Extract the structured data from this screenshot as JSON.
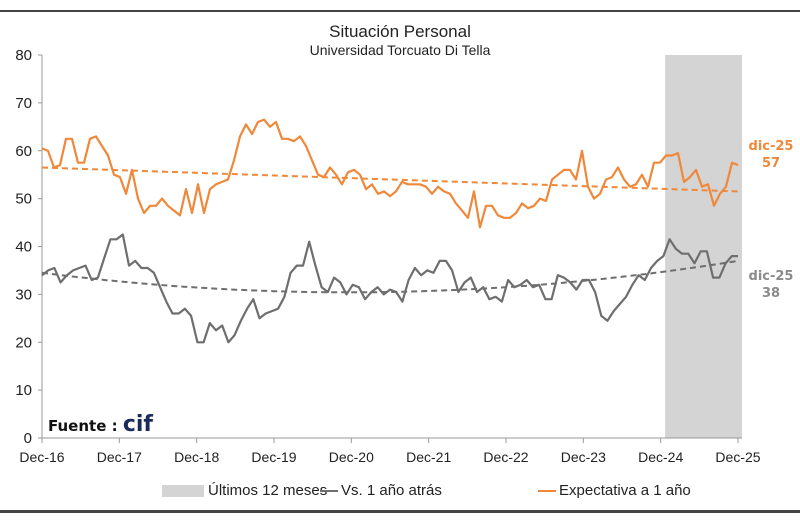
{
  "chart_data": {
    "type": "line",
    "title": "Situación Personal",
    "subtitle": "Universidad Torcuato Di Tella",
    "xlabel": "",
    "ylabel": "",
    "ylim": [
      0,
      80
    ],
    "yticks": [
      "0",
      "10",
      "20",
      "30",
      "40",
      "50",
      "60",
      "70",
      "80"
    ],
    "xticks": [
      "Dec-16",
      "Dec-17",
      "Dec-18",
      "Dec-19",
      "Dec-20",
      "Dec-21",
      "Dec-22",
      "Dec-23",
      "Dec-24",
      "Dec-25"
    ],
    "x_start": "Dec-16",
    "x_end": "Dec-25",
    "frequency": "monthly",
    "shaded_region": {
      "label": "Últimos 12 meses",
      "from_month_index": 97,
      "to_month_index": 108,
      "color": "#d4d4d4"
    },
    "series": [
      {
        "name": "Expectativa a 1 año",
        "color": "#f0883a",
        "end_label": "dic-25",
        "end_value": "57",
        "values": [
          60.5,
          60,
          56.5,
          57,
          62.5,
          62.5,
          57.5,
          57.5,
          62.5,
          63,
          61,
          59,
          55,
          54.5,
          51,
          56,
          50,
          47,
          48.5,
          48.5,
          50,
          48.5,
          47.5,
          46.5,
          52,
          47,
          53,
          47,
          52,
          53,
          53.5,
          54,
          58,
          63,
          65.5,
          63.5,
          66,
          66.5,
          65,
          66,
          62.5,
          62.5,
          62,
          63,
          61,
          58,
          55,
          54.5,
          56.5,
          55,
          53,
          55.5,
          56,
          55,
          52,
          53,
          51,
          51.5,
          50.5,
          51.5,
          53.5,
          53,
          53,
          53,
          52.5,
          51,
          52.5,
          51.5,
          51,
          49,
          47.5,
          46,
          51.5,
          44,
          48.5,
          48.5,
          46.5,
          46,
          46,
          47,
          49,
          48,
          48.5,
          50,
          49.5,
          54,
          55,
          56,
          56,
          54,
          60,
          52.5,
          50,
          51,
          54,
          54.5,
          56.5,
          54,
          52.5,
          53,
          55,
          52.5,
          57.5,
          57.5,
          59,
          59,
          59.5,
          53.5,
          54.5,
          56,
          52.5,
          53,
          48.5,
          51,
          52.5,
          57.5,
          57
        ],
        "trend": {
          "start": 56.5,
          "end": 51.5,
          "style": "dashed"
        }
      },
      {
        "name": "Vs. 1 año atrás",
        "color": "#6e6e6e",
        "end_label": "dic-25",
        "end_value": "38",
        "values": [
          34,
          35,
          35.5,
          32.5,
          34,
          35,
          35.5,
          36,
          33,
          33.5,
          37.5,
          41.5,
          41.5,
          42.5,
          36,
          37,
          35.5,
          35.5,
          34.5,
          31.5,
          28.5,
          26,
          26,
          27,
          25.5,
          20,
          20,
          24,
          22.5,
          23.5,
          20,
          21.5,
          24.5,
          27,
          29,
          25,
          26,
          26.5,
          27,
          29.5,
          34.5,
          36,
          36,
          41,
          36,
          31.5,
          30.5,
          33.5,
          32.5,
          30,
          32,
          31.5,
          29,
          30.5,
          31.5,
          30,
          31,
          30.5,
          28.5,
          33,
          35.5,
          34,
          35,
          34.5,
          37,
          37,
          35,
          30.5,
          32.5,
          33.5,
          30.5,
          31.5,
          29,
          29.5,
          28.5,
          33,
          31.5,
          32,
          33,
          31.5,
          32,
          29,
          29,
          34,
          33.5,
          32.5,
          31,
          33,
          33,
          30.5,
          25.5,
          24.5,
          26.5,
          28,
          29.5,
          32,
          34,
          33,
          35.5,
          37,
          38,
          41.5,
          39.5,
          38.5,
          38.5,
          36.5,
          39,
          39,
          33.5,
          33.5,
          36.5,
          38,
          38
        ],
        "trend": {
          "start": 34.5,
          "mid": 30.5,
          "end": 37,
          "style": "dashed"
        }
      }
    ],
    "legend": {
      "placement": "bottom",
      "entries": [
        {
          "label": "Últimos 12 meses",
          "kind": "box",
          "color": "#d4d4d4"
        },
        {
          "label": "Vs. 1 año atrás",
          "kind": "line",
          "color": "#6e6e6e"
        },
        {
          "label": "Expectativa a 1 año",
          "kind": "line",
          "color": "#f0883a"
        }
      ]
    },
    "source": {
      "label": "Fuente :",
      "brand": "cif"
    }
  }
}
